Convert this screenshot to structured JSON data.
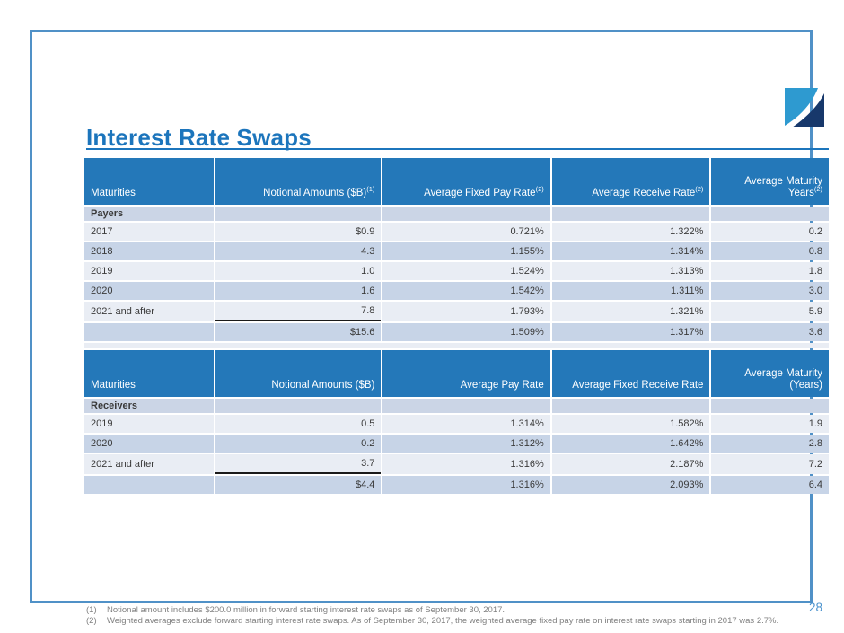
{
  "page": {
    "title": "Interest Rate Swaps",
    "page_number": "28",
    "logo": "brand-swoosh-logo",
    "colors": {
      "accent": "#1C75BC",
      "frame_border": "#5091C7",
      "table_header_bg": "#2478B9",
      "row_light": "#E9EDF4",
      "row_dark": "#C7D4E7",
      "section_band": "#CBD5E6",
      "footnote_gray": "#808080",
      "logo_light_blue": "#2E9AD0",
      "logo_navy": "#17386B",
      "page_number_blue": "#4D94CE"
    }
  },
  "tables": [
    {
      "name": "payers",
      "section_label": "Payers",
      "headers": [
        {
          "text": "Maturities",
          "sup": ""
        },
        {
          "text": "Notional Amounts ($B)",
          "sup": "(1)"
        },
        {
          "text": "Average Fixed Pay Rate",
          "sup": "(2)"
        },
        {
          "text": "Average Receive Rate",
          "sup": "(2)"
        },
        {
          "text": "Average Maturity Years",
          "sup": "(2)"
        }
      ],
      "rows": [
        {
          "cells": [
            "2017",
            "$0.9",
            "0.721%",
            "1.322%",
            "0.2"
          ]
        },
        {
          "cells": [
            "2018",
            "4.3",
            "1.155%",
            "1.314%",
            "0.8"
          ]
        },
        {
          "cells": [
            "2019",
            "1.0",
            "1.524%",
            "1.313%",
            "1.8"
          ]
        },
        {
          "cells": [
            "2020",
            "1.6",
            "1.542%",
            "1.311%",
            "3.0"
          ]
        },
        {
          "cells": [
            "2021 and after",
            "7.8",
            "1.793%",
            "1.321%",
            "5.9"
          ],
          "underline_col": 1
        },
        {
          "cells": [
            "",
            "$15.6",
            "1.509%",
            "1.317%",
            "3.6"
          ],
          "total": true
        }
      ]
    },
    {
      "name": "receivers",
      "section_label": "Receivers",
      "headers": [
        {
          "text": "Maturities",
          "sup": ""
        },
        {
          "text": "Notional Amounts ($B)",
          "sup": ""
        },
        {
          "text": "Average Pay Rate",
          "sup": ""
        },
        {
          "text": "Average Fixed Receive Rate",
          "sup": ""
        },
        {
          "text": "Average Maturity (Years)",
          "sup": ""
        }
      ],
      "rows": [
        {
          "cells": [
            "2019",
            "0.5",
            "1.314%",
            "1.582%",
            "1.9"
          ]
        },
        {
          "cells": [
            "2020",
            "0.2",
            "1.312%",
            "1.642%",
            "2.8"
          ]
        },
        {
          "cells": [
            "2021 and after",
            "3.7",
            "1.316%",
            "2.187%",
            "7.2"
          ],
          "underline_col": 1
        },
        {
          "cells": [
            "",
            "$4.4",
            "1.316%",
            "2.093%",
            "6.4"
          ],
          "total": true
        }
      ]
    }
  ],
  "footnotes": [
    {
      "marker": "(1)",
      "text": "Notional amount includes $200.0 million in forward starting interest rate swaps as of September 30, 2017."
    },
    {
      "marker": "(2)",
      "text": "Weighted averages exclude forward starting interest rate swaps. As of September 30, 2017, the weighted average fixed pay rate on interest rate swaps starting in 2017 was 2.7%."
    }
  ]
}
